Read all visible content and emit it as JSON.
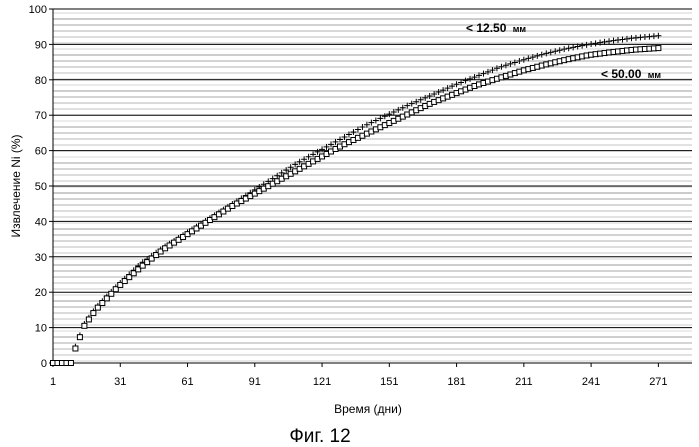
{
  "chart_data": {
    "type": "scatter",
    "xlabel": "Время (дни)",
    "ylabel": "Извлечение Ni (%)",
    "xlim": [
      1,
      286
    ],
    "ylim": [
      0,
      100
    ],
    "xticks": [
      "1",
      "31",
      "61",
      "91",
      "121",
      "151",
      "181",
      "211",
      "241",
      "271"
    ],
    "yticks": [
      "0",
      "10",
      "20",
      "30",
      "40",
      "50",
      "60",
      "70",
      "80",
      "90",
      "100"
    ],
    "grid": "horizontal",
    "series": [
      {
        "name": "< 12.50 мм",
        "marker": "plus",
        "x": [
          1,
          9,
          10,
          15,
          20,
          30,
          40,
          50,
          60,
          70,
          80,
          90,
          100,
          110,
          120,
          130,
          140,
          150,
          160,
          170,
          180,
          190,
          200,
          210,
          220,
          230,
          240,
          250,
          260,
          272
        ],
        "y": [
          0,
          0,
          3,
          11,
          15.5,
          22,
          28,
          32.5,
          36.5,
          40.5,
          44.5,
          48.5,
          52.5,
          56.5,
          60,
          63.5,
          67,
          70,
          73,
          75.7,
          78.5,
          81,
          83.5,
          85.5,
          87.3,
          88.8,
          90,
          91,
          91.8,
          92.5
        ]
      },
      {
        "name": "< 50.00 мм",
        "marker": "square",
        "x": [
          1,
          9,
          10,
          15,
          20,
          30,
          40,
          50,
          60,
          70,
          80,
          90,
          100,
          110,
          120,
          130,
          140,
          150,
          160,
          170,
          180,
          190,
          200,
          210,
          220,
          230,
          240,
          250,
          260,
          272
        ],
        "y": [
          0,
          0,
          2.5,
          10.5,
          15,
          21.5,
          27,
          32,
          36,
          40,
          44,
          47.5,
          51,
          54.5,
          58,
          61.5,
          64.5,
          67.5,
          70.5,
          73.5,
          76,
          78.5,
          80.5,
          82.5,
          84.2,
          85.7,
          87,
          87.8,
          88.5,
          89
        ]
      }
    ],
    "annotations": [
      {
        "main": "< 12.50",
        "unit": "мм"
      },
      {
        "main": "< 50.00",
        "unit": "мм"
      }
    ]
  },
  "caption": "Фиг. 12"
}
